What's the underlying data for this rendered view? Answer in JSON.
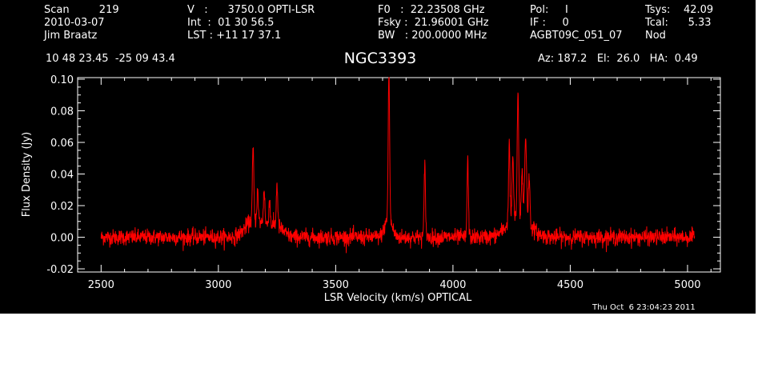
{
  "header": {
    "col1": [
      "Scan         219",
      "2010-03-07",
      "Jim Braatz"
    ],
    "col2": [
      "V   :      3750.0 OPTI-LSR",
      "Int  :  01 30 56.5",
      "LST : +11 17 37.1"
    ],
    "col3": [
      "F0   :  22.23508 GHz",
      "Fsky :  21.96001 GHz",
      "BW   : 200.0000 MHz"
    ],
    "col4": [
      "Pol:     I",
      "IF :     0",
      "AGBT09C_051_07"
    ],
    "col5": [
      "Tsys:    42.09",
      "Tcal:      5.33",
      "Nod"
    ],
    "coords": "10 48 23.45  -25 09 43.4",
    "pointing": "Az: 187.2   El:  26.0   HA:  0.49"
  },
  "footer": {
    "timestamp": "Thu Oct  6 23:04:23 2011"
  },
  "chart_data": {
    "type": "line",
    "title": "NGC3393",
    "xlabel": "LSR Velocity (km/s) OPTICAL",
    "ylabel": "Flux Density (Jy)",
    "xlim": [
      2400,
      5140
    ],
    "ylim": [
      -0.022,
      0.101
    ],
    "xticks": [
      2500,
      3000,
      3500,
      4000,
      4500,
      5000
    ],
    "yticks": [
      -0.02,
      0.0,
      0.02,
      0.04,
      0.06,
      0.08,
      0.1
    ],
    "ytick_labels": [
      "-0.02",
      "0.00",
      "0.02",
      "0.04",
      "0.06",
      "0.08",
      "0.10"
    ],
    "grid": false,
    "background": "#000000",
    "axis_color": "#ffffff",
    "series": [
      {
        "color": "#ff0000",
        "x_range": [
          2500,
          5030
        ],
        "noise_rms": 0.0025,
        "baseline": 0.0,
        "features": [
          {
            "center": 3140,
            "width": 30,
            "amp": 0.008,
            "kind": "broad"
          },
          {
            "center": 3200,
            "width": 40,
            "amp": 0.007,
            "kind": "broad"
          },
          {
            "center": 3255,
            "width": 25,
            "amp": 0.004,
            "kind": "broad"
          },
          {
            "center": 3148,
            "width": 3,
            "amp": 0.046,
            "kind": "narrow"
          },
          {
            "center": 3167,
            "width": 3,
            "amp": 0.019,
            "kind": "narrow"
          },
          {
            "center": 3195,
            "width": 3,
            "amp": 0.022,
            "kind": "narrow"
          },
          {
            "center": 3218,
            "width": 3,
            "amp": 0.016,
            "kind": "narrow"
          },
          {
            "center": 3250,
            "width": 3,
            "amp": 0.027,
            "kind": "narrow"
          },
          {
            "center": 3725,
            "width": 15,
            "amp": 0.012,
            "kind": "broad"
          },
          {
            "center": 3727,
            "width": 3,
            "amp": 0.093,
            "kind": "narrow"
          },
          {
            "center": 3880,
            "width": 3,
            "amp": 0.045,
            "kind": "narrow"
          },
          {
            "center": 4063,
            "width": 3,
            "amp": 0.048,
            "kind": "narrow"
          },
          {
            "center": 4280,
            "width": 45,
            "amp": 0.014,
            "kind": "broad"
          },
          {
            "center": 4240,
            "width": 3,
            "amp": 0.05,
            "kind": "narrow"
          },
          {
            "center": 4255,
            "width": 3,
            "amp": 0.04,
            "kind": "narrow"
          },
          {
            "center": 4277,
            "width": 3,
            "amp": 0.078,
            "kind": "narrow"
          },
          {
            "center": 4295,
            "width": 3,
            "amp": 0.03,
            "kind": "narrow"
          },
          {
            "center": 4310,
            "width": 4,
            "amp": 0.052,
            "kind": "narrow"
          },
          {
            "center": 4325,
            "width": 3,
            "amp": 0.03,
            "kind": "narrow"
          }
        ]
      }
    ]
  }
}
